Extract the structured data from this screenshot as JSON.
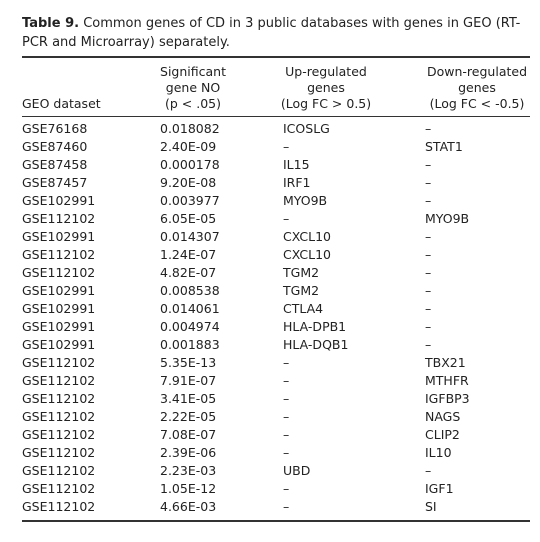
{
  "caption": {
    "label": "Table 9.",
    "text": "Common genes of CD in 3 public databases with genes in GEO (RT-PCR and Microarray) separately."
  },
  "table": {
    "header": [
      [
        "GEO dataset"
      ],
      [
        "Significant",
        "gene NO",
        "(p < .05)"
      ],
      [
        "Up-regulated",
        "genes",
        "(Log FC > 0.5)"
      ],
      [
        "Down-regulated",
        "genes",
        "(Log FC < -0.5)"
      ]
    ],
    "rows": [
      [
        "GSE76168",
        "0.018082",
        "ICOSLG",
        "–"
      ],
      [
        "GSE87460",
        "2.40E-09",
        "–",
        "STAT1"
      ],
      [
        "GSE87458",
        "0.000178",
        "IL15",
        "–"
      ],
      [
        "GSE87457",
        "9.20E-08",
        "IRF1",
        "–"
      ],
      [
        "GSE102991",
        "0.003977",
        "MYO9B",
        "–"
      ],
      [
        "GSE112102",
        "6.05E-05",
        "–",
        "MYO9B"
      ],
      [
        "GSE102991",
        "0.014307",
        "CXCL10",
        "–"
      ],
      [
        "GSE112102",
        "1.24E-07",
        "CXCL10",
        "–"
      ],
      [
        "GSE112102",
        "4.82E-07",
        "TGM2",
        "–"
      ],
      [
        "GSE102991",
        "0.008538",
        "TGM2",
        "–"
      ],
      [
        "GSE102991",
        "0.014061",
        "CTLA4",
        "–"
      ],
      [
        "GSE102991",
        "0.004974",
        "HLA-DPB1",
        "–"
      ],
      [
        "GSE102991",
        "0.001883",
        "HLA-DQB1",
        "–"
      ],
      [
        "GSE112102",
        "5.35E-13",
        "–",
        "TBX21"
      ],
      [
        "GSE112102",
        "7.91E-07",
        "–",
        "MTHFR"
      ],
      [
        "GSE112102",
        "3.41E-05",
        "–",
        "IGFBP3"
      ],
      [
        "GSE112102",
        "2.22E-05",
        "–",
        "NAGS"
      ],
      [
        "GSE112102",
        "7.08E-07",
        "–",
        "CLIP2"
      ],
      [
        "GSE112102",
        "2.39E-06",
        "–",
        "IL10"
      ],
      [
        "GSE112102",
        "2.23E-03",
        "UBD",
        "–"
      ],
      [
        "GSE112102",
        "1.05E-12",
        "–",
        "IGF1"
      ],
      [
        "GSE112102",
        "4.66E-03",
        "–",
        "SI"
      ]
    ]
  }
}
